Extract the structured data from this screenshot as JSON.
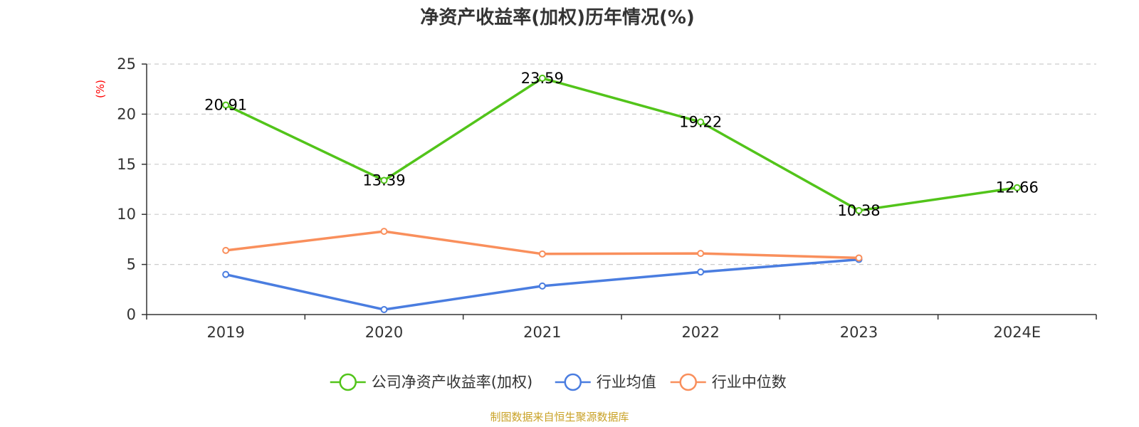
{
  "chart_data": {
    "type": "line",
    "title": "净资产收益率(加权)历年情况(%)",
    "ylabel": "(%)",
    "xlabel": "",
    "categories": [
      "2019",
      "2020",
      "2021",
      "2022",
      "2023",
      "2024E"
    ],
    "ylim": [
      0,
      25
    ],
    "yticks": [
      0,
      5,
      10,
      15,
      20,
      25
    ],
    "grid": true,
    "legend_position": "bottom",
    "series": [
      {
        "name": "公司净资产收益率(加权)",
        "color": "#52c41a",
        "values": [
          20.91,
          13.39,
          23.59,
          19.22,
          10.38,
          12.66
        ],
        "labels": [
          "20.91",
          "13.39",
          "23.59",
          "19.22",
          "10.38",
          "12.66"
        ]
      },
      {
        "name": "行业均值",
        "color": "#4a7de0",
        "values": [
          4.0,
          0.5,
          2.85,
          4.25,
          5.5,
          null
        ]
      },
      {
        "name": "行业中位数",
        "color": "#f98f5c",
        "values": [
          6.4,
          8.3,
          6.05,
          6.1,
          5.65,
          null
        ]
      }
    ]
  },
  "colors": {
    "axis": "#333333",
    "grid": "#cccccc",
    "ylabel": "#ff0000",
    "source": "#c9a227"
  },
  "source_text": "制图数据来自恒生聚源数据库"
}
